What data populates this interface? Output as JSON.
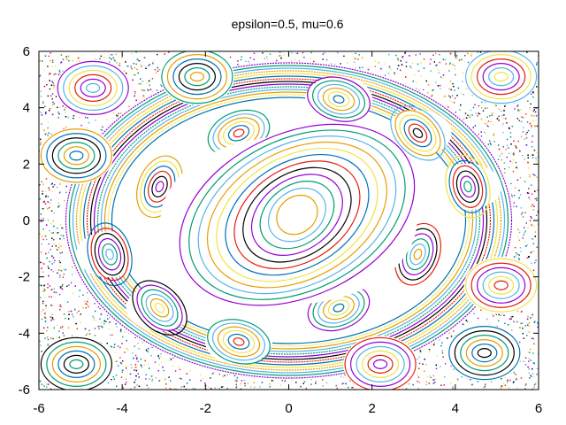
{
  "chart_data": {
    "type": "scatter",
    "title": "epsilon=0.5, mu=0.6",
    "xlabel": "",
    "ylabel": "",
    "xlim": [
      -6,
      6
    ],
    "ylim": [
      -6,
      6
    ],
    "xticks": [
      "-6",
      "-4",
      "-2",
      "0",
      "2",
      "4",
      "6"
    ],
    "yticks": [
      "-6",
      "-4",
      "-2",
      "0",
      "2",
      "4",
      "6"
    ],
    "grid": false,
    "legend": "none",
    "colors": [
      "#9400d3",
      "#009e73",
      "#56b4e9",
      "#e69f00",
      "#f0e442",
      "#0072b2",
      "#e51e10",
      "#000000"
    ],
    "structure": {
      "central_island": {
        "center": [
          0.2,
          0.2
        ],
        "orbits": 12
      },
      "islands_chain_8": [
        {
          "center": [
            1.2,
            4.3
          ]
        },
        {
          "center": [
            -1.2,
            3.1
          ]
        },
        {
          "center": [
            3.1,
            3.1
          ]
        },
        {
          "center": [
            -3.1,
            1.2
          ]
        },
        {
          "center": [
            4.3,
            1.2
          ]
        },
        {
          "center": [
            -4.3,
            -1.2
          ]
        },
        {
          "center": [
            3.1,
            -1.2
          ]
        },
        {
          "center": [
            -3.1,
            -3.1
          ]
        },
        {
          "center": [
            1.2,
            -3.1
          ]
        },
        {
          "center": [
            -1.2,
            -4.3
          ]
        }
      ],
      "corner_islands": [
        {
          "center": [
            -4.7,
            4.7
          ]
        },
        {
          "center": [
            -2.2,
            5.1
          ]
        },
        {
          "center": [
            5.1,
            5.1
          ]
        },
        {
          "center": [
            -5.1,
            2.3
          ]
        },
        {
          "center": [
            5.1,
            -2.3
          ]
        },
        {
          "center": [
            4.7,
            -4.7
          ]
        },
        {
          "center": [
            2.2,
            -5.1
          ]
        },
        {
          "center": [
            -5.1,
            -5.1
          ]
        }
      ]
    }
  }
}
